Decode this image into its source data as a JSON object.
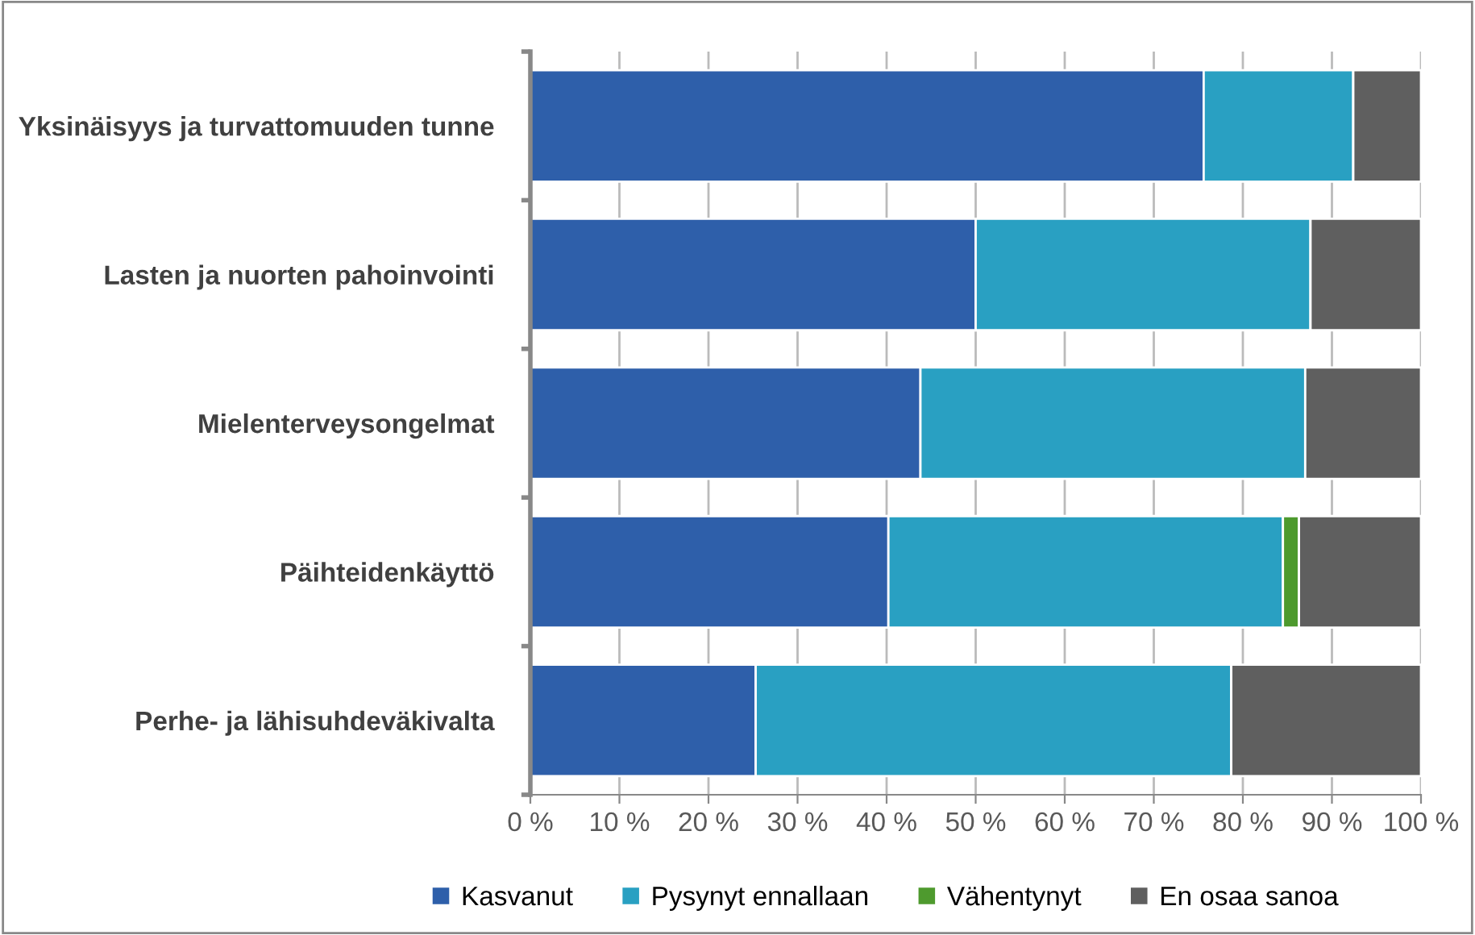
{
  "chart_data": {
    "type": "bar",
    "orientation": "horizontal",
    "stacked": true,
    "categories": [
      "Yksinäisyys ja turvattomuuden tunne",
      "Lasten ja nuorten pahoinvointi",
      "Mielenterveysongelmat",
      "Päihteidenkäyttö",
      "Perhe- ja lähisuhdeväkivalta"
    ],
    "series": [
      {
        "name": "Kasvanut",
        "color": "#2e5faa",
        "values": [
          75.6,
          50.0,
          43.8,
          40.2,
          25.3
        ]
      },
      {
        "name": "Pysynyt ennallaan",
        "color": "#29a0c2",
        "values": [
          16.8,
          37.6,
          43.2,
          44.3,
          53.4
        ]
      },
      {
        "name": "Vähentynyt",
        "color": "#4e9a2e",
        "values": [
          0,
          0,
          0,
          1.8,
          0
        ]
      },
      {
        "name": "En osaa sanoa",
        "color": "#5f5f5f",
        "values": [
          7.6,
          12.4,
          13.0,
          13.7,
          21.3
        ]
      }
    ],
    "xlim": [
      0,
      100
    ],
    "xticks": [
      {
        "value": 0,
        "label": "0 %"
      },
      {
        "value": 10,
        "label": "10 %"
      },
      {
        "value": 20,
        "label": "20 %"
      },
      {
        "value": 30,
        "label": "30 %"
      },
      {
        "value": 40,
        "label": "40 %"
      },
      {
        "value": 50,
        "label": "50 %"
      },
      {
        "value": 60,
        "label": "60 %"
      },
      {
        "value": 70,
        "label": "70 %"
      },
      {
        "value": 80,
        "label": "80 %"
      },
      {
        "value": 90,
        "label": "90 %"
      },
      {
        "value": 100,
        "label": "100 %"
      }
    ],
    "grid": "x",
    "legend": "bottom"
  }
}
